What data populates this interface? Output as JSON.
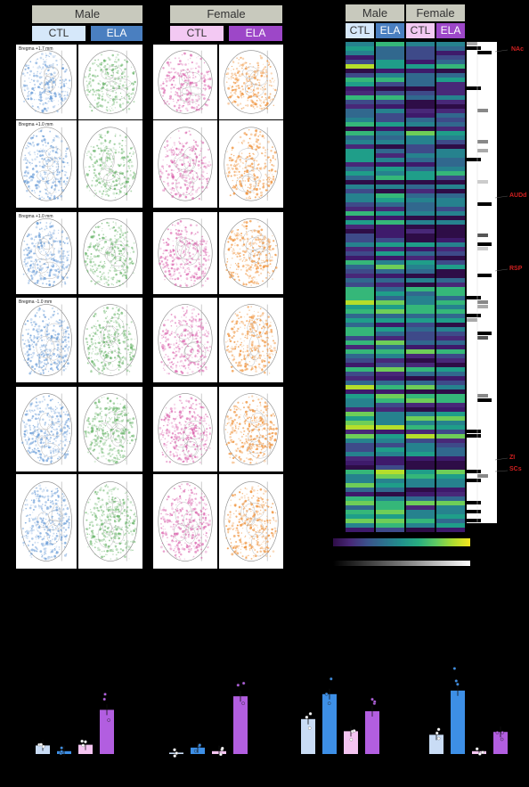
{
  "headers": {
    "left_male": "Male",
    "left_female": "Female",
    "heat_male": "Male",
    "heat_female": "Female"
  },
  "groups": [
    "CTL",
    "ELA",
    "CTL",
    "ELA"
  ],
  "bregma_labels": [
    "Bregma +1.7 mm",
    "Bregma +1.0 mm",
    "Bregma +1.0 mm",
    "Bregma -1.0 mm"
  ],
  "colors": {
    "male_ctl": "#d6e8fa",
    "male_ela": "#4a7fc0",
    "female_ctl": "#f3c9f3",
    "female_ela": "#9d47c8",
    "ctl_atlas": "#5b93d4",
    "ela_atlas": "#5fb060",
    "f_ctl_atlas": "#d85aa8",
    "f_ela_atlas": "#f0923a",
    "bar_light_blue": "#c9dcf5",
    "bar_blue": "#3d8fe6",
    "bar_light_pink": "#f4c4f1",
    "bar_purple": "#b25ee0"
  },
  "region_labels": [
    "NAc",
    "AUDd",
    "RSP",
    "ZI",
    "SCs"
  ],
  "bar_panels": [
    {
      "values": [
        0.12,
        0.04,
        0.13,
        0.62
      ]
    },
    {
      "values": [
        0.02,
        0.09,
        0.04,
        0.81
      ]
    },
    {
      "values": [
        0.49,
        0.84,
        0.32,
        0.6
      ]
    },
    {
      "values": [
        0.27,
        0.89,
        0.04,
        0.31
      ]
    }
  ]
}
